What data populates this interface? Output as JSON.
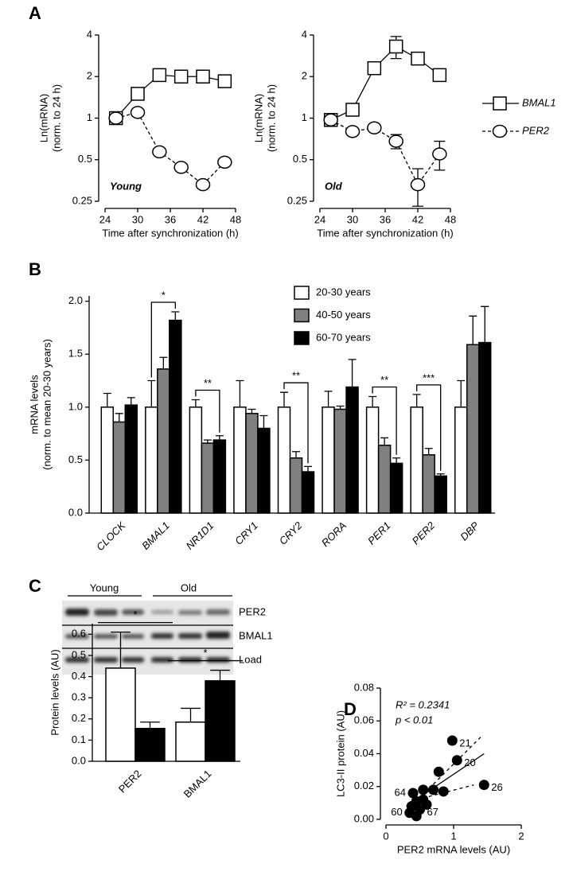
{
  "chart_data": [
    {
      "type": "line",
      "panel": "A",
      "x": [
        26,
        30,
        34,
        38,
        42,
        46
      ],
      "xlim": [
        24,
        48
      ],
      "xticks": [
        24,
        30,
        36,
        42,
        48
      ],
      "ylim": [
        0.25,
        4
      ],
      "yticks": [
        0.25,
        0.5,
        1,
        2,
        4
      ],
      "log_y": true,
      "xlabel": "Time after synchronization (h)",
      "ylabel": [
        "Ln(mRNA)",
        "(norm. to  24 h)"
      ],
      "annotation": "Young",
      "series": [
        {
          "marker": "square",
          "dash": false,
          "color": "#000000",
          "values": [
            1,
            1.5,
            2.05,
            2,
            2,
            1.85
          ]
        },
        {
          "marker": "circle",
          "dash": true,
          "color": "#000000",
          "values": [
            1,
            1.1,
            0.57,
            0.44,
            0.33,
            0.48
          ]
        }
      ]
    },
    {
      "type": "line",
      "x": [
        26,
        30,
        34,
        38,
        42,
        46
      ],
      "xlim": [
        24,
        48
      ],
      "xticks": [
        24,
        30,
        36,
        42,
        48
      ],
      "ylim": [
        0.25,
        4
      ],
      "yticks": [
        0.25,
        0.5,
        1,
        2,
        4
      ],
      "log_y": true,
      "legend": "right",
      "xlabel": "Time after synchronization (h)",
      "ylabel": [
        "Ln(mRNA)",
        "(norm. to  24 h)"
      ],
      "annotation": "Old",
      "series": [
        {
          "name": "BMAL1",
          "marker": "square",
          "dash": false,
          "color": "#000000",
          "values": [
            0.97,
            1.15,
            2.3,
            3.3,
            2.7,
            2.05
          ],
          "errors": [
            0,
            0,
            0,
            0.6,
            0,
            0
          ]
        },
        {
          "name": "PER2",
          "marker": "circle",
          "dash": true,
          "color": "#000000",
          "values": [
            0.97,
            0.8,
            0.85,
            0.68,
            0.33,
            0.55
          ],
          "errors": [
            0,
            0,
            0,
            0.08,
            0.1,
            0.13
          ]
        }
      ]
    },
    {
      "type": "bar",
      "panel": "B",
      "categories": [
        "CLOCK",
        "BMAL1",
        "NR1D1",
        "CRY1",
        "CRY2",
        "RORA",
        "PER1",
        "PER2",
        "DBP"
      ],
      "italic_categories": true,
      "ylim": [
        0,
        2.05
      ],
      "yticks": [
        {
          "value": 0,
          "label": "0.0"
        },
        0.5,
        {
          "value": 1,
          "label": "1.0"
        },
        1.5,
        {
          "value": 2,
          "label": "2.0"
        }
      ],
      "ylabel": [
        "mRNA levels",
        "(norm. to mean 20-30 years)"
      ],
      "legend": "top",
      "annotation_style": "bracket",
      "series": [
        {
          "name": "20-30 years",
          "color": "#ffffff",
          "values": [
            1,
            1,
            1,
            1,
            1,
            1,
            1,
            1,
            1
          ],
          "errors": [
            0.13,
            0.25,
            0.07,
            0.25,
            0.14,
            0.15,
            0.1,
            0.12,
            0.25
          ]
        },
        {
          "name": "40-50 years",
          "color": "#808080",
          "values": [
            0.86,
            1.36,
            0.66,
            0.94,
            0.52,
            0.98,
            0.64,
            0.55,
            1.59
          ],
          "errors": [
            0.08,
            0.11,
            0.03,
            0.04,
            0.06,
            0.03,
            0.07,
            0.06,
            0.27
          ]
        },
        {
          "name": "60-70 years",
          "color": "#000000",
          "values": [
            1.02,
            1.82,
            0.69,
            0.8,
            0.39,
            1.19,
            0.47,
            0.35,
            1.61
          ],
          "errors": [
            0.07,
            0.08,
            0.04,
            0.12,
            0.05,
            0.26,
            0.05,
            0.02,
            0.34
          ]
        }
      ],
      "annotations": [
        {
          "category": "BMAL1",
          "text": "*"
        },
        {
          "category": "NR1D1",
          "text": "**"
        },
        {
          "category": "CRY2",
          "text": "**"
        },
        {
          "category": "PER1",
          "text": "**"
        },
        {
          "category": "PER2",
          "text": "***"
        }
      ]
    },
    {
      "type": "bar",
      "panel": "C",
      "categories": [
        "PER2",
        "BMAL1"
      ],
      "italic_categories": false,
      "ylim": [
        0,
        0.65
      ],
      "yticks": [
        {
          "value": 0,
          "label": "0.0"
        },
        0.1,
        0.2,
        0.3,
        0.4,
        0.5,
        0.6
      ],
      "ylabel": [
        "Protein levels (AU)"
      ],
      "annotation_style": "line",
      "blot": {
        "groups": [
          "Young",
          "Old"
        ],
        "rows": [
          "PER2",
          "BMAL1",
          "Load"
        ]
      },
      "series": [
        {
          "color": "#ffffff",
          "values": [
            0.44,
            0.185
          ],
          "errors": [
            0.17,
            0.065
          ]
        },
        {
          "color": "#000000",
          "values": [
            0.155,
            0.38
          ],
          "errors": [
            0.03,
            0.05
          ]
        }
      ],
      "annotations": [
        {
          "category": "PER2",
          "text": "*"
        },
        {
          "category": "BMAL1",
          "text": "*"
        }
      ]
    },
    {
      "type": "scatter",
      "panel": "D",
      "xlim": [
        0,
        2
      ],
      "xticks": [
        0,
        1,
        2
      ],
      "ylim": [
        0,
        0.08
      ],
      "yticks": [
        {
          "value": 0,
          "label": "0.00"
        },
        {
          "value": 0.02,
          "label": "0.02"
        },
        {
          "value": 0.04,
          "label": "0.04"
        },
        {
          "value": 0.06,
          "label": "0.06"
        },
        {
          "value": 0.08,
          "label": "0.08"
        }
      ],
      "xlabel": "PER2 mRNA levels (AU)",
      "ylabel": [
        "LC3-II protein (AU)"
      ],
      "stats": [
        "R² = 0.2341",
        "p < 0.01"
      ],
      "color": "#000000",
      "x": [
        0.98,
        1.05,
        1.45,
        0.78,
        0.4,
        0.35,
        0.45,
        0.55,
        0.5,
        0.7,
        0.85,
        0.45,
        0.38,
        0.55,
        0.6
      ],
      "values": [
        0.048,
        0.036,
        0.021,
        0.029,
        0.016,
        0.004,
        0.011,
        0.012,
        0.006,
        0.018,
        0.017,
        0.002,
        0.008,
        0.018,
        0.009
      ],
      "point_labels": [
        "21",
        "20",
        "26",
        null,
        "64",
        "60",
        null,
        null,
        "67",
        null,
        null,
        null,
        null,
        null,
        null
      ],
      "lines": [
        {
          "slope": 0.0278,
          "intercept": -0.0003,
          "x": [
            0.3,
            1.45
          ],
          "style": "solid"
        },
        {
          "slope": 0.041,
          "intercept": -0.0073,
          "x": [
            0.3,
            1.4
          ],
          "style": "dotted"
        },
        {
          "slope": 0.0106,
          "intercept": 0.0072,
          "x": [
            0.45,
            1.3
          ],
          "style": "dotted"
        }
      ]
    }
  ]
}
